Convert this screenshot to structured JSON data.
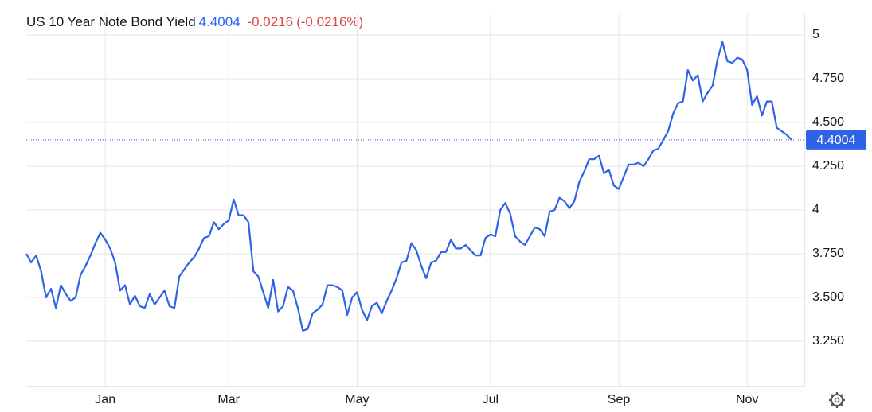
{
  "chart_data": {
    "type": "line",
    "title": "US 10 Year Note Bond Yield",
    "change": -0.0216,
    "change_pct": {
      "value": -0.0216,
      "label": "(-0.0216%)"
    },
    "color": "#2f62e6",
    "categories": [
      null,
      null,
      null,
      null,
      null,
      null,
      null,
      null,
      null,
      null,
      null,
      null,
      null,
      null,
      null,
      null,
      "Jan",
      null,
      null,
      null,
      null,
      null,
      null,
      null,
      null,
      null,
      null,
      null,
      null,
      null,
      null,
      null,
      null,
      null,
      null,
      null,
      null,
      null,
      null,
      null,
      null,
      "Mar",
      null,
      null,
      null,
      null,
      null,
      null,
      null,
      null,
      null,
      null,
      null,
      null,
      null,
      null,
      null,
      null,
      null,
      null,
      null,
      null,
      null,
      null,
      null,
      null,
      null,
      "May",
      null,
      null,
      null,
      null,
      null,
      null,
      null,
      null,
      null,
      null,
      null,
      null,
      null,
      null,
      null,
      null,
      null,
      null,
      null,
      null,
      null,
      null,
      null,
      null,
      null,
      null,
      "Jul",
      null,
      null,
      null,
      null,
      null,
      null,
      null,
      null,
      null,
      null,
      null,
      null,
      null,
      null,
      null,
      null,
      null,
      null,
      null,
      null,
      null,
      null,
      null,
      null,
      null,
      "Sep",
      null,
      null,
      null,
      null,
      null,
      null,
      null,
      null,
      null,
      null,
      null,
      null,
      null,
      null,
      null,
      null,
      null,
      null,
      null,
      null,
      null,
      null,
      null,
      null,
      null,
      "Nov",
      null,
      null,
      null,
      null,
      null,
      null,
      null,
      null,
      null
    ],
    "values": [
      3.75,
      3.7,
      3.74,
      3.65,
      3.5,
      3.55,
      3.44,
      3.57,
      3.52,
      3.48,
      3.5,
      3.63,
      3.68,
      3.74,
      3.81,
      3.87,
      3.83,
      3.78,
      3.7,
      3.54,
      3.57,
      3.46,
      3.51,
      3.45,
      3.44,
      3.52,
      3.46,
      3.5,
      3.54,
      3.45,
      3.44,
      3.62,
      3.66,
      3.7,
      3.73,
      3.78,
      3.84,
      3.85,
      3.93,
      3.89,
      3.92,
      3.94,
      4.06,
      3.97,
      3.97,
      3.93,
      3.65,
      3.62,
      3.53,
      3.44,
      3.6,
      3.42,
      3.45,
      3.56,
      3.54,
      3.44,
      3.31,
      3.32,
      3.41,
      3.43,
      3.46,
      3.57,
      3.57,
      3.56,
      3.54,
      3.4,
      3.5,
      3.53,
      3.43,
      3.37,
      3.45,
      3.47,
      3.41,
      3.48,
      3.54,
      3.61,
      3.7,
      3.71,
      3.81,
      3.77,
      3.68,
      3.61,
      3.7,
      3.71,
      3.76,
      3.76,
      3.83,
      3.78,
      3.78,
      3.8,
      3.77,
      3.74,
      3.74,
      3.84,
      3.86,
      3.85,
      4.0,
      4.04,
      3.98,
      3.85,
      3.82,
      3.8,
      3.85,
      3.9,
      3.89,
      3.85,
      3.99,
      4.0,
      4.07,
      4.05,
      4.01,
      4.05,
      4.16,
      4.22,
      4.29,
      4.29,
      4.31,
      4.21,
      4.23,
      4.14,
      4.12,
      4.19,
      4.26,
      4.26,
      4.27,
      4.25,
      4.29,
      4.34,
      4.35,
      4.4,
      4.45,
      4.55,
      4.61,
      4.62,
      4.8,
      4.74,
      4.77,
      4.62,
      4.67,
      4.71,
      4.86,
      4.96,
      4.85,
      4.84,
      4.87,
      4.86,
      4.8,
      4.6,
      4.65,
      4.54,
      4.62,
      4.62,
      4.47,
      4.45,
      4.43,
      4.4004
    ],
    "ylim": [
      3.0,
      5.1
    ],
    "yticks": [
      {
        "value": 3.25,
        "label": "3.250"
      },
      {
        "value": 3.5,
        "label": "3.500"
      },
      {
        "value": 3.75,
        "label": "3.750"
      },
      4,
      {
        "value": 4.25,
        "label": "4.250"
      },
      {
        "value": 4.5,
        "label": "4.500"
      },
      {
        "value": 4.75,
        "label": "4.750"
      },
      5
    ],
    "grid": true
  }
}
